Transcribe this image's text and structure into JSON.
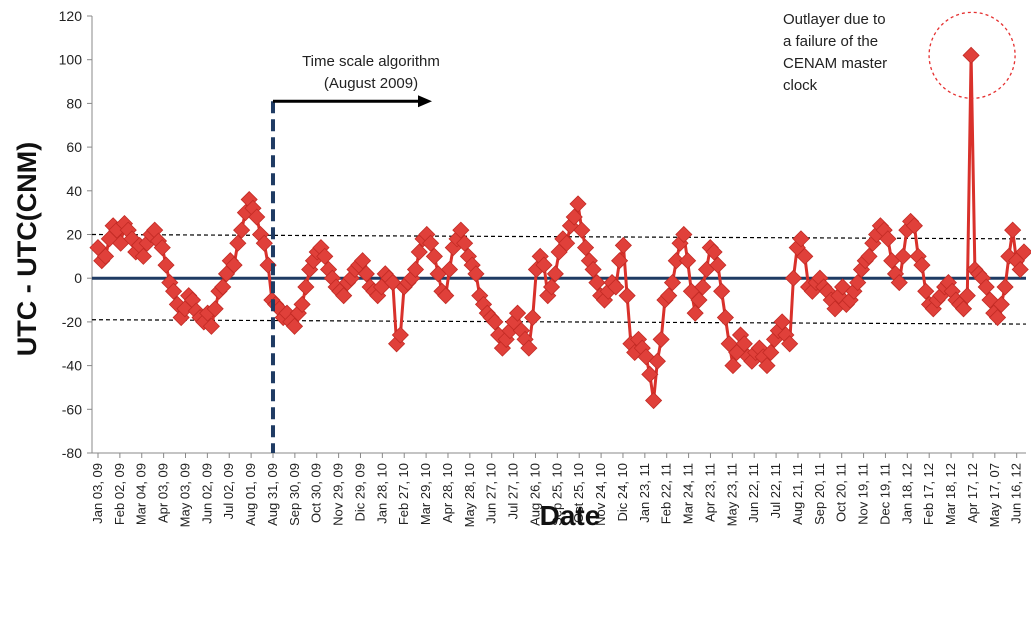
{
  "chart_data": {
    "type": "scatter",
    "xlabel": "Date",
    "ylabel": "UTC - UTC(CNM)",
    "ylim": [
      -80,
      120
    ],
    "yticks": [
      -80,
      -60,
      -40,
      -20,
      0,
      20,
      40,
      60,
      80,
      100,
      120
    ],
    "grid": false,
    "legend": "none",
    "colors": {
      "series": "#d9312b",
      "marker": "#e0403a",
      "zero_line": "#1f3b63",
      "algorithm_marker": "#1f3b63",
      "band": "#000000",
      "outlier_circle": "#e53030"
    },
    "x_tick_labels": [
      "Jan 03, 09",
      "Feb 02, 09",
      "Mar 04, 09",
      "Apr 03, 09",
      "May 03, 09",
      "Jun 02, 09",
      "Jul 02, 09",
      "Aug 01, 09",
      "Aug 31, 09",
      "Sep 30, 09",
      "Oct 30, 09",
      "Nov 29, 09",
      "Dic 29, 09",
      "Jan 28, 10",
      "Feb 27, 10",
      "Mar 29, 10",
      "Apr 28, 10",
      "May 28, 10",
      "Jun 27, 10",
      "Jul 27, 10",
      "Aug 26, 10",
      "Sep 25, 10",
      "Oct 25, 10",
      "Nov 24, 10",
      "Dic 24, 10",
      "Jan 23, 11",
      "Feb 22, 11",
      "Mar 24, 11",
      "Apr 23, 11",
      "May 23, 11",
      "Jun 22, 11",
      "Jul 22, 11",
      "Aug 21, 11",
      "Sep 20, 11",
      "Oct 20, 11",
      "Nov 19, 11",
      "Dec 19, 11",
      "Jan 18, 12",
      "Feb 17, 12",
      "Mar 18, 12",
      "Apr 17, 12",
      "May 17, 07",
      "Jun 16, 12"
    ],
    "series": [
      {
        "values": [
          14,
          8,
          10,
          18,
          24,
          22,
          16,
          25,
          22,
          18,
          12,
          15,
          10,
          16,
          20,
          22,
          17,
          14,
          6,
          -2,
          -6,
          -12,
          -18,
          -14,
          -8,
          -10,
          -15,
          -18,
          -20,
          -16,
          -22,
          -14,
          -6,
          -4,
          2,
          8,
          6,
          16,
          22,
          30,
          36,
          32,
          28,
          20,
          16,
          6,
          -10,
          -12,
          -14,
          -18,
          -16,
          -20,
          -22,
          -16,
          -12,
          -4,
          4,
          8,
          12,
          14,
          10,
          4,
          0,
          -4,
          -6,
          -8,
          -2,
          0,
          4,
          6,
          8,
          2,
          -4,
          -6,
          -8,
          -4,
          2,
          0,
          -2,
          -30,
          -26,
          -4,
          -2,
          0,
          4,
          12,
          18,
          20,
          16,
          10,
          2,
          -6,
          -8,
          4,
          14,
          18,
          22,
          16,
          10,
          6,
          2,
          -8,
          -12,
          -16,
          -18,
          -20,
          -26,
          -32,
          -28,
          -24,
          -20,
          -16,
          -24,
          -28,
          -32,
          -18,
          4,
          10,
          6,
          -8,
          -4,
          2,
          12,
          18,
          16,
          24,
          28,
          34,
          22,
          14,
          8,
          4,
          -2,
          -8,
          -10,
          -6,
          -2,
          -4,
          8,
          15,
          -8,
          -30,
          -34,
          -28,
          -32,
          -36,
          -44,
          -56,
          -38,
          -28,
          -10,
          -8,
          -2,
          8,
          16,
          20,
          8,
          -6,
          -16,
          -10,
          -4,
          4,
          14,
          12,
          6,
          -6,
          -18,
          -30,
          -40,
          -34,
          -26,
          -30,
          -36,
          -38,
          -34,
          -32,
          -36,
          -40,
          -34,
          -28,
          -24,
          -20,
          -26,
          -30,
          0,
          14,
          18,
          10,
          -4,
          -6,
          -2,
          0,
          -4,
          -6,
          -10,
          -14,
          -8,
          -4,
          -12,
          -10,
          -6,
          -2,
          4,
          8,
          10,
          16,
          20,
          24,
          22,
          18,
          8,
          2,
          -2,
          10,
          22,
          26,
          24,
          10,
          6,
          -6,
          -12,
          -14,
          -10,
          -8,
          -4,
          -2,
          -6,
          -10,
          -12,
          -14,
          -8,
          102,
          4,
          2,
          0,
          -4,
          -10,
          -16,
          -18,
          -12,
          -4,
          10,
          22,
          8,
          4,
          12
        ]
      }
    ],
    "annotations": {
      "algorithm_label": [
        "Time scale algorithm",
        "(August 2009)"
      ],
      "algorithm_at": "Aug 31, 09",
      "outlier_label": [
        "Outlayer due to",
        "a failure of the",
        "CENAM master",
        "clock"
      ],
      "upper_band": [
        20,
        18
      ],
      "lower_band": [
        -19,
        -21
      ]
    }
  }
}
